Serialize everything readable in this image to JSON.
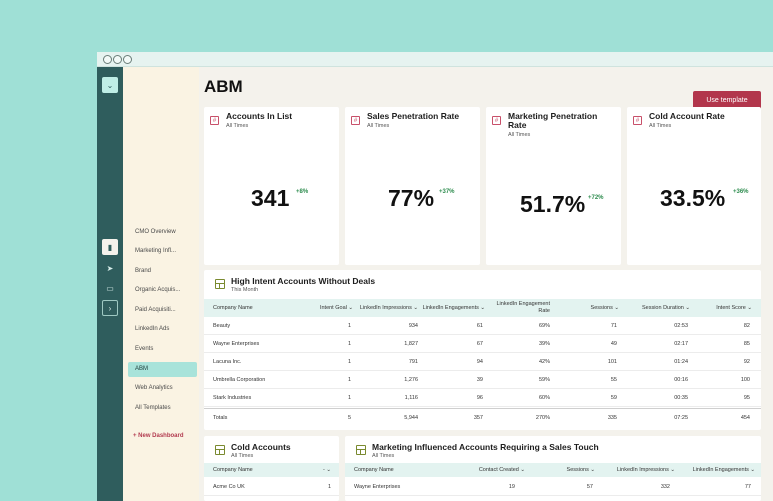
{
  "sidebar": {
    "items": [
      {
        "label": "CMO Overview"
      },
      {
        "label": "Marketing Infl..."
      },
      {
        "label": "Brand"
      },
      {
        "label": "Organic Acquis..."
      },
      {
        "label": "Paid Acquisiti..."
      },
      {
        "label": "LinkedIn Ads"
      },
      {
        "label": "Events"
      },
      {
        "label": "ABM"
      },
      {
        "label": "Web Analytics"
      },
      {
        "label": "All Templates"
      }
    ],
    "active_index": 7,
    "new_dashboard_label": "+ New Dashboard"
  },
  "page": {
    "title": "ABM",
    "use_template_label": "Use template"
  },
  "kpis": [
    {
      "title": "Accounts In List",
      "subtitle": "All Times",
      "value": "341",
      "delta": "+8%"
    },
    {
      "title": "Sales Penetration Rate",
      "subtitle": "All Times",
      "value": "77%",
      "delta": "+37%"
    },
    {
      "title": "Marketing Penetration Rate",
      "subtitle": "All Times",
      "value": "51.7%",
      "delta": "+72%"
    },
    {
      "title": "Cold Account Rate",
      "subtitle": "All Times",
      "value": "33.5%",
      "delta": "+36%"
    }
  ],
  "high_intent": {
    "title": "High Intent Accounts Without Deals",
    "subtitle": "This Month",
    "columns": [
      "Company Name",
      "Intent Goal ⌄",
      "LinkedIn Impressions ⌄",
      "LinkedIn Engagements ⌄",
      "LinkedIn Engagement Rate",
      "Sessions ⌄",
      "Session Duration ⌄",
      "Intent Score ⌄"
    ],
    "rows": [
      [
        "Beauty",
        "1",
        "934",
        "61",
        "69%",
        "71",
        "02:53",
        "82"
      ],
      [
        "Wayne Enterprises",
        "1",
        "1,827",
        "67",
        "39%",
        "49",
        "02:17",
        "85"
      ],
      [
        "Lacuna Inc.",
        "1",
        "791",
        "94",
        "42%",
        "101",
        "01:24",
        "92"
      ],
      [
        "Umbrella Corporation",
        "1",
        "1,276",
        "39",
        "59%",
        "55",
        "00:16",
        "100"
      ],
      [
        "Stark Industries",
        "1",
        "1,116",
        "96",
        "60%",
        "59",
        "00:35",
        "95"
      ]
    ],
    "totals": [
      "Totals",
      "5",
      "5,944",
      "357",
      "270%",
      "335",
      "07:25",
      "454"
    ]
  },
  "cold_accounts": {
    "title": "Cold Accounts",
    "subtitle": "All Times",
    "columns": [
      "Company Name",
      "- ⌄"
    ],
    "rows": [
      [
        "Acme Co UK",
        "1"
      ]
    ]
  },
  "mkt_influenced": {
    "title": "Marketing Influenced Accounts Requiring a Sales Touch",
    "subtitle": "All Times",
    "columns": [
      "Company Name",
      "Contact Created ⌄",
      "Sessions ⌄",
      "LinkedIn Impressions ⌄",
      "LinkedIn Engagements ⌄"
    ],
    "rows": [
      [
        "Wayne Enterprises",
        "19",
        "57",
        "332",
        "77"
      ]
    ]
  }
}
